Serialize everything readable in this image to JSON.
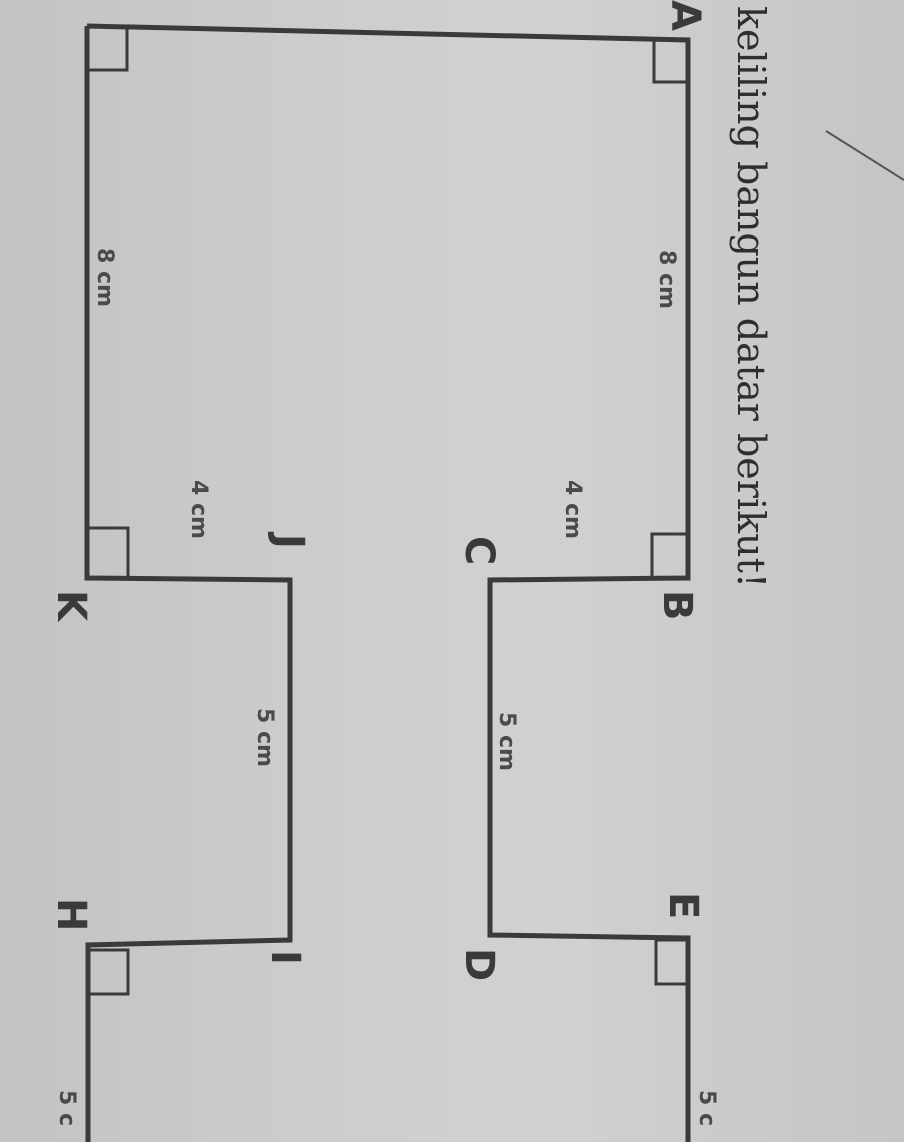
{
  "instruction": "keliling bangun datar berikut!",
  "vertices": {
    "A": "A",
    "B": "B",
    "C": "C",
    "D": "D",
    "E": "E",
    "H": "H",
    "I": "I",
    "J": "J",
    "K": "K"
  },
  "dimensions": {
    "ab": "8 cm",
    "ak": "8 cm",
    "bc": "4 cm",
    "jk": "4 cm",
    "cd": "5 cm",
    "ij": "5 cm",
    "ef_partial": "5 c",
    "hg_partial": "5 c"
  },
  "colors": {
    "stroke": "#3a3a3a",
    "paper": "#cfcecc"
  }
}
